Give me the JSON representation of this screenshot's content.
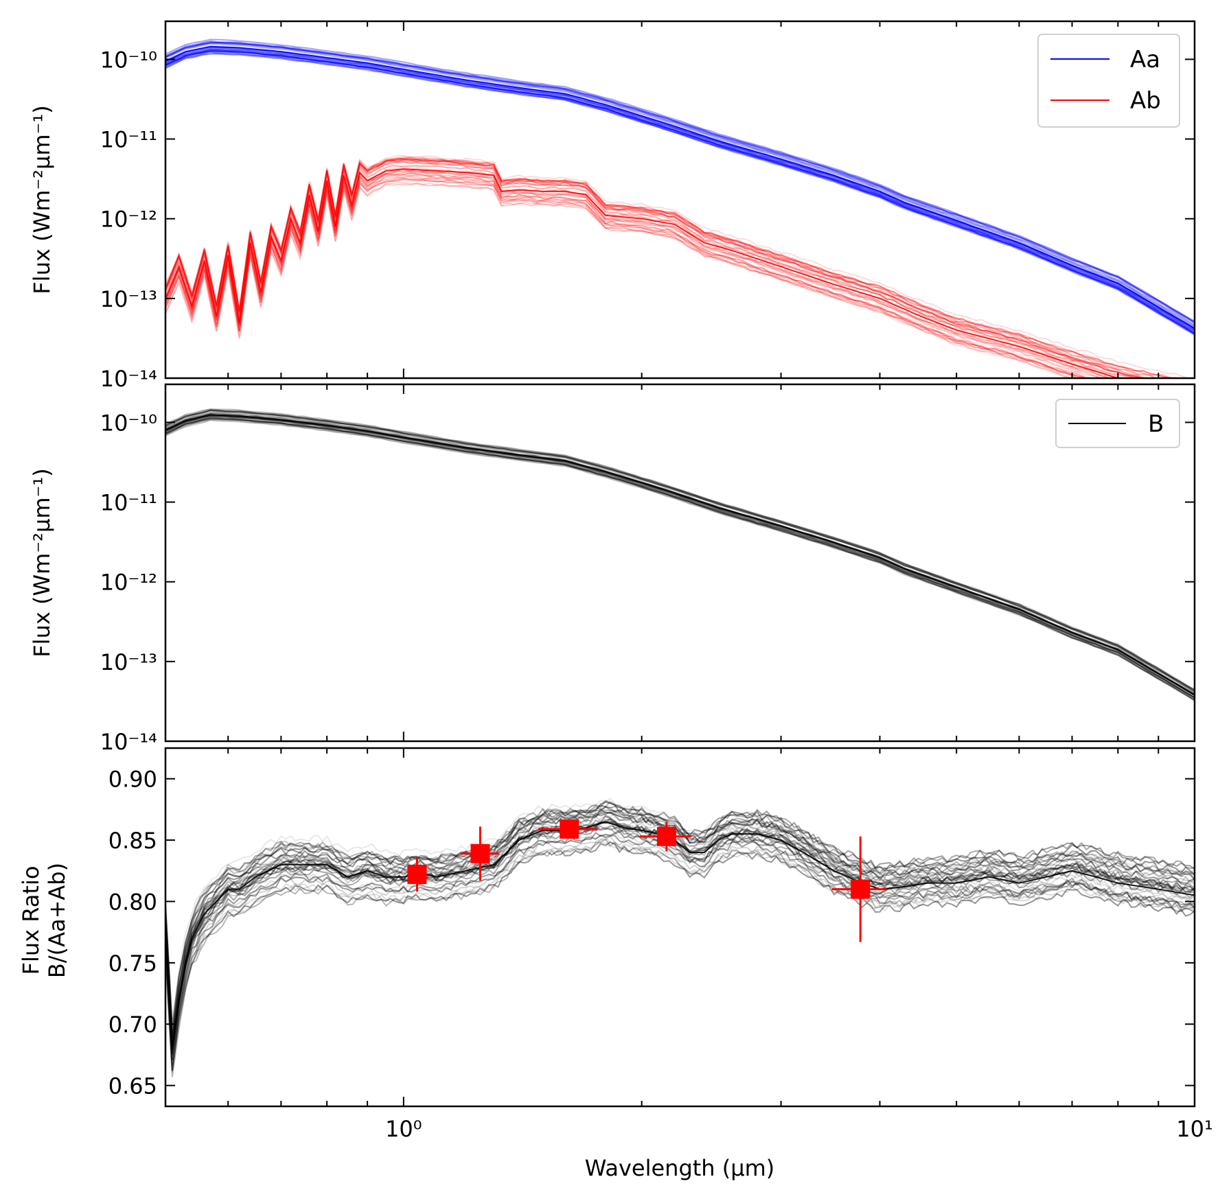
{
  "chart_data": [
    {
      "type": "line",
      "panel": "top",
      "ylabel": "Flux (Wm$^{-2}$$\\mu$m$^{-1}$)",
      "ylabel_display": "Flux (Wm⁻²μm⁻¹)",
      "yscale": "log",
      "xscale": "log",
      "xlim": [
        0.5,
        10
      ],
      "ylim": [
        1e-14,
        3e-10
      ],
      "ytick_labels": [
        "10⁻¹⁰",
        "10⁻¹¹",
        "10⁻¹²",
        "10⁻¹³",
        "10⁻¹⁴"
      ],
      "legend_position": "top-right",
      "grid": false,
      "series": [
        {
          "name": "Aa",
          "color": "#0000ff",
          "x": [
            0.5,
            0.53,
            0.57,
            0.62,
            0.7,
            0.8,
            0.9,
            1.0,
            1.2,
            1.4,
            1.6,
            1.8,
            2.0,
            2.2,
            2.5,
            3.0,
            3.5,
            4.0,
            4.3,
            5.0,
            6.0,
            7.0,
            8.0,
            10.0
          ],
          "y": [
            9.5e-11,
            1.25e-10,
            1.45e-10,
            1.4e-10,
            1.25e-10,
            1.05e-10,
            9e-11,
            7.5e-11,
            5.5e-11,
            4.4e-11,
            3.7e-11,
            2.7e-11,
            1.95e-11,
            1.45e-11,
            9.5e-12,
            5.6e-12,
            3.5e-12,
            2.2e-12,
            1.6e-12,
            9.5e-13,
            5e-13,
            2.6e-13,
            1.55e-13,
            4.2e-14
          ]
        },
        {
          "name": "Ab",
          "color": "#ff0000",
          "x": [
            0.5,
            0.52,
            0.54,
            0.56,
            0.58,
            0.6,
            0.62,
            0.64,
            0.66,
            0.68,
            0.7,
            0.72,
            0.74,
            0.76,
            0.78,
            0.8,
            0.82,
            0.84,
            0.86,
            0.88,
            0.9,
            0.95,
            1.0,
            1.1,
            1.2,
            1.3,
            1.33,
            1.4,
            1.5,
            1.6,
            1.7,
            1.8,
            2.0,
            2.2,
            2.4,
            2.6,
            3.0,
            3.5,
            4.0,
            4.5,
            5.0,
            6.0,
            7.0,
            8.0,
            10.0
          ],
          "y": [
            1e-13,
            2.5e-13,
            8e-14,
            3e-13,
            6e-14,
            3.5e-13,
            5e-14,
            5e-13,
            1.2e-13,
            6e-13,
            3e-13,
            1e-12,
            5e-13,
            2e-12,
            7e-13,
            3e-12,
            8e-13,
            3.5e-12,
            1.5e-12,
            3.8e-12,
            3e-12,
            4e-12,
            4.2e-12,
            4e-12,
            3.8e-12,
            3.5e-12,
            2.2e-12,
            2.3e-12,
            2.2e-12,
            2.2e-12,
            2e-12,
            1.1e-12,
            1e-12,
            8.5e-13,
            5e-13,
            4e-13,
            2.5e-13,
            1.5e-13,
            1e-13,
            6e-14,
            4e-14,
            2.5e-14,
            1.5e-14,
            1e-14,
            6e-15
          ]
        }
      ]
    },
    {
      "type": "line",
      "panel": "middle",
      "ylabel": "Flux (Wm$^{-2}$$\\mu$m$^{-1}$)",
      "ylabel_display": "Flux (Wm⁻²μm⁻¹)",
      "yscale": "log",
      "xscale": "log",
      "xlim": [
        0.5,
        10
      ],
      "ylim": [
        1e-14,
        3e-10
      ],
      "ytick_labels": [
        "10⁻¹⁰",
        "10⁻¹¹",
        "10⁻¹²",
        "10⁻¹³",
        "10⁻¹⁴"
      ],
      "legend_position": "top-right",
      "grid": false,
      "series": [
        {
          "name": "B",
          "color": "#000000",
          "x": [
            0.5,
            0.53,
            0.57,
            0.62,
            0.7,
            0.8,
            0.9,
            1.0,
            1.2,
            1.4,
            1.6,
            1.8,
            2.0,
            2.2,
            2.5,
            3.0,
            3.5,
            4.0,
            4.3,
            5.0,
            6.0,
            7.0,
            8.0,
            10.0
          ],
          "y": [
            8e-11,
            1.05e-10,
            1.25e-10,
            1.2e-10,
            1.08e-10,
            9.2e-11,
            7.8e-11,
            6.5e-11,
            4.8e-11,
            3.9e-11,
            3.3e-11,
            2.4e-11,
            1.75e-11,
            1.3e-11,
            8.5e-12,
            5e-12,
            3.1e-12,
            2e-12,
            1.45e-12,
            8.5e-13,
            4.5e-13,
            2.3e-13,
            1.4e-13,
            3.8e-14
          ]
        }
      ]
    },
    {
      "type": "line",
      "panel": "bottom",
      "title": "",
      "xlabel": "Wavelength ($\\mu$m)",
      "xlabel_display": "Wavelength (μm)",
      "ylabel_lines": [
        "Flux Ratio",
        "B/(Aa+Ab)"
      ],
      "xscale": "log",
      "xlim": [
        0.5,
        10
      ],
      "ylim": [
        0.633,
        0.925
      ],
      "xtick_labels": [
        "10⁰",
        "10¹"
      ],
      "ytick_labels": [
        "0.65",
        "0.70",
        "0.75",
        "0.80",
        "0.85",
        "0.90"
      ],
      "grid": false,
      "series": [
        {
          "color": "#000000",
          "x": [
            0.5,
            0.51,
            0.52,
            0.53,
            0.54,
            0.56,
            0.58,
            0.6,
            0.62,
            0.65,
            0.7,
            0.75,
            0.8,
            0.85,
            0.9,
            0.95,
            1.0,
            1.05,
            1.1,
            1.2,
            1.3,
            1.35,
            1.4,
            1.5,
            1.6,
            1.7,
            1.8,
            1.9,
            2.0,
            2.1,
            2.2,
            2.3,
            2.4,
            2.5,
            2.6,
            2.8,
            3.0,
            3.2,
            3.5,
            3.8,
            4.0,
            4.3,
            4.6,
            5.0,
            5.5,
            6.0,
            6.5,
            7.0,
            7.5,
            8.0,
            9.0,
            10.0
          ],
          "y": [
            0.78,
            0.68,
            0.72,
            0.75,
            0.77,
            0.79,
            0.8,
            0.81,
            0.81,
            0.82,
            0.83,
            0.83,
            0.83,
            0.82,
            0.825,
            0.82,
            0.82,
            0.823,
            0.82,
            0.825,
            0.83,
            0.84,
            0.85,
            0.858,
            0.858,
            0.86,
            0.865,
            0.86,
            0.858,
            0.855,
            0.85,
            0.84,
            0.84,
            0.85,
            0.855,
            0.855,
            0.85,
            0.84,
            0.825,
            0.815,
            0.81,
            0.812,
            0.815,
            0.815,
            0.82,
            0.815,
            0.82,
            0.825,
            0.82,
            0.815,
            0.81,
            0.805
          ]
        }
      ],
      "measurements": {
        "color": "#ff0000",
        "points": [
          {
            "x": 1.04,
            "y": 0.822,
            "xerr": 0.0,
            "yerr": 0.014
          },
          {
            "x": 1.25,
            "y": 0.839,
            "xerr": 0.07,
            "yerr": 0.022
          },
          {
            "x": 1.62,
            "y": 0.859,
            "xerr": 0.14,
            "yerr": 0.005
          },
          {
            "x": 2.15,
            "y": 0.853,
            "xerr": 0.16,
            "yerr": 0.012
          },
          {
            "x": 3.78,
            "y": 0.81,
            "xerr": 0.3,
            "yerr": 0.043
          }
        ]
      }
    }
  ]
}
